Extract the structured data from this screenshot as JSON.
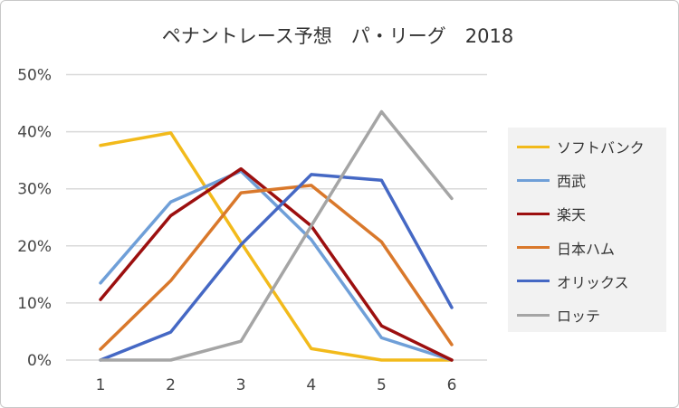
{
  "chart_data": {
    "type": "line",
    "title": "ペナントレース予想　パ・リーグ　2018",
    "x": [
      1,
      2,
      3,
      4,
      5,
      6
    ],
    "x_tick_labels": [
      "1",
      "2",
      "3",
      "4",
      "5",
      "6"
    ],
    "y_tick_labels": [
      "0%",
      "10%",
      "20%",
      "30%",
      "40%",
      "50%"
    ],
    "ylim": [
      0,
      50
    ],
    "y_unit": "%",
    "grid": true,
    "legend_position": "right",
    "series": [
      {
        "name": "ソフトバンク",
        "color": "#F2BA1B",
        "values": [
          37.6,
          39.8,
          20.6,
          2.0,
          0,
          0
        ]
      },
      {
        "name": "西武",
        "color": "#6F9FD8",
        "values": [
          13.5,
          27.7,
          33.1,
          21.1,
          3.9,
          0
        ]
      },
      {
        "name": "楽天",
        "color": "#9C0F0F",
        "values": [
          10.6,
          25.3,
          33.5,
          23.5,
          6.0,
          0
        ]
      },
      {
        "name": "日本ハム",
        "color": "#D9782B",
        "values": [
          1.9,
          13.9,
          29.3,
          30.6,
          20.7,
          2.7
        ]
      },
      {
        "name": "オリックス",
        "color": "#4568C4",
        "values": [
          0,
          4.9,
          20.2,
          32.5,
          31.5,
          9.2
        ]
      },
      {
        "name": "ロッテ",
        "color": "#A5A5A5",
        "values": [
          0,
          0,
          3.3,
          23.5,
          43.5,
          28.3
        ]
      }
    ]
  }
}
